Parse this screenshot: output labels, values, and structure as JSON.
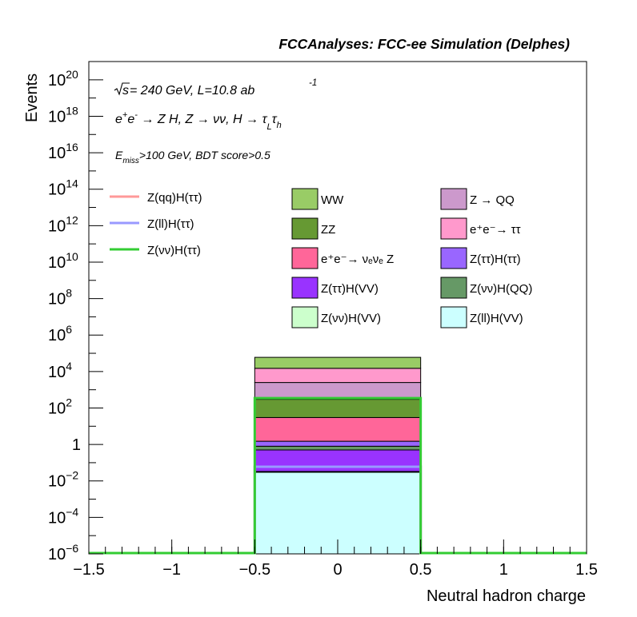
{
  "header": {
    "title": "FCCAnalyses: FCC-ee Simulation (Delphes)"
  },
  "annotations": {
    "energy_sqrt": "s",
    "energy_rest": " = 240 GeV, L=10.8 ab",
    "lumi_exp": "-1",
    "process": {
      "a": "e",
      "a_sup": "+",
      "b": "e",
      "b_sup": "-",
      "c": " → Z H, Z  → νν, H  → τ",
      "d_sub": "L",
      "e": "τ",
      "f_sub": "h"
    },
    "selection": {
      "a": "E",
      "a_sub": "miss",
      "b": ">100 GeV, BDT score>0.5"
    }
  },
  "chart_data": {
    "type": "bar",
    "title": "",
    "xlabel": "Neutral hadron charge",
    "ylabel": "Events",
    "xlim": [
      -1.5,
      1.5
    ],
    "ylim": [
      1e-06,
      1e+21
    ],
    "yscale": "log",
    "grid": false,
    "legend_position": "top",
    "x_ticks": [
      "−1.5",
      "−1",
      "−0.5",
      "0",
      "0.5",
      "1",
      "1.5"
    ],
    "y_ticks": [
      {
        "base": "10",
        "exp": "−6"
      },
      {
        "base": "10",
        "exp": "−4"
      },
      {
        "base": "10",
        "exp": "−2"
      },
      {
        "base": "1",
        "exp": ""
      },
      {
        "base": "10",
        "exp": "2"
      },
      {
        "base": "10",
        "exp": "4"
      },
      {
        "base": "10",
        "exp": "6"
      },
      {
        "base": "10",
        "exp": "8"
      },
      {
        "base": "10",
        "exp": "10"
      },
      {
        "base": "10",
        "exp": "12"
      },
      {
        "base": "10",
        "exp": "14"
      },
      {
        "base": "10",
        "exp": "16"
      },
      {
        "base": "10",
        "exp": "18"
      },
      {
        "base": "10",
        "exp": "20"
      }
    ],
    "bin": [
      -0.5,
      0.5
    ],
    "stack_cumulative": [
      {
        "name": "Z(ll)H(VV)",
        "top": 0.03,
        "color": "#ccffff"
      },
      {
        "name": "Z(νν)H(VV)",
        "top": 0.033,
        "color": "#ccffcc"
      },
      {
        "name": "Z(ττ)H(VV)",
        "top": 0.5,
        "color": "#9933ff"
      },
      {
        "name": "Z(νν)H(QQ)",
        "top": 0.8,
        "color": "#669966"
      },
      {
        "name": "Z(ττ)H(ττ)",
        "top": 1.5,
        "color": "#9966ff"
      },
      {
        "name": "e+e-→ νeνe Z",
        "top": 30,
        "color": "#ff6699"
      },
      {
        "name": "ZZ",
        "top": 300,
        "color": "#669933"
      },
      {
        "name": "Z → QQ",
        "top": 2500,
        "color": "#cc99cc"
      },
      {
        "name": "e+e-→ ττ",
        "top": 15000,
        "color": "#ff99cc"
      },
      {
        "name": "WW",
        "top": 60000,
        "color": "#99cc66"
      }
    ],
    "signal_lines": [
      {
        "name": "Z(qq)H(ττ)",
        "value": 0.06,
        "color": "#ff9999"
      },
      {
        "name": "Z(ll)H(ττ)",
        "value": 0.06,
        "color": "#9999ff"
      },
      {
        "name": "Z(νν)H(ττ)",
        "value": 350,
        "color": "#33cc33"
      }
    ],
    "legend": {
      "lines": [
        {
          "label": "Z(qq)H(ττ)",
          "color": "#ff9999"
        },
        {
          "label": "Z(ll)H(ττ)",
          "color": "#9999ff"
        },
        {
          "label": "Z(νν)H(ττ)",
          "color": "#33cc33"
        }
      ],
      "boxes_col1": [
        {
          "label": "WW",
          "color": "#99cc66"
        },
        {
          "label": "ZZ",
          "color": "#669933"
        },
        {
          "label": "e⁺e⁻→ νₑνₑ Z",
          "color": "#ff6699"
        },
        {
          "label": "Z(ττ)H(VV)",
          "color": "#9933ff"
        },
        {
          "label": "Z(νν)H(VV)",
          "color": "#ccffcc"
        }
      ],
      "boxes_col2": [
        {
          "label": "Z → QQ",
          "color": "#cc99cc"
        },
        {
          "label": "e⁺e⁻→ ττ",
          "color": "#ff99cc"
        },
        {
          "label": "Z(ττ)H(ττ)",
          "color": "#9966ff"
        },
        {
          "label": "Z(νν)H(QQ)",
          "color": "#669966"
        },
        {
          "label": "Z(ll)H(VV)",
          "color": "#ccffff"
        }
      ]
    }
  }
}
